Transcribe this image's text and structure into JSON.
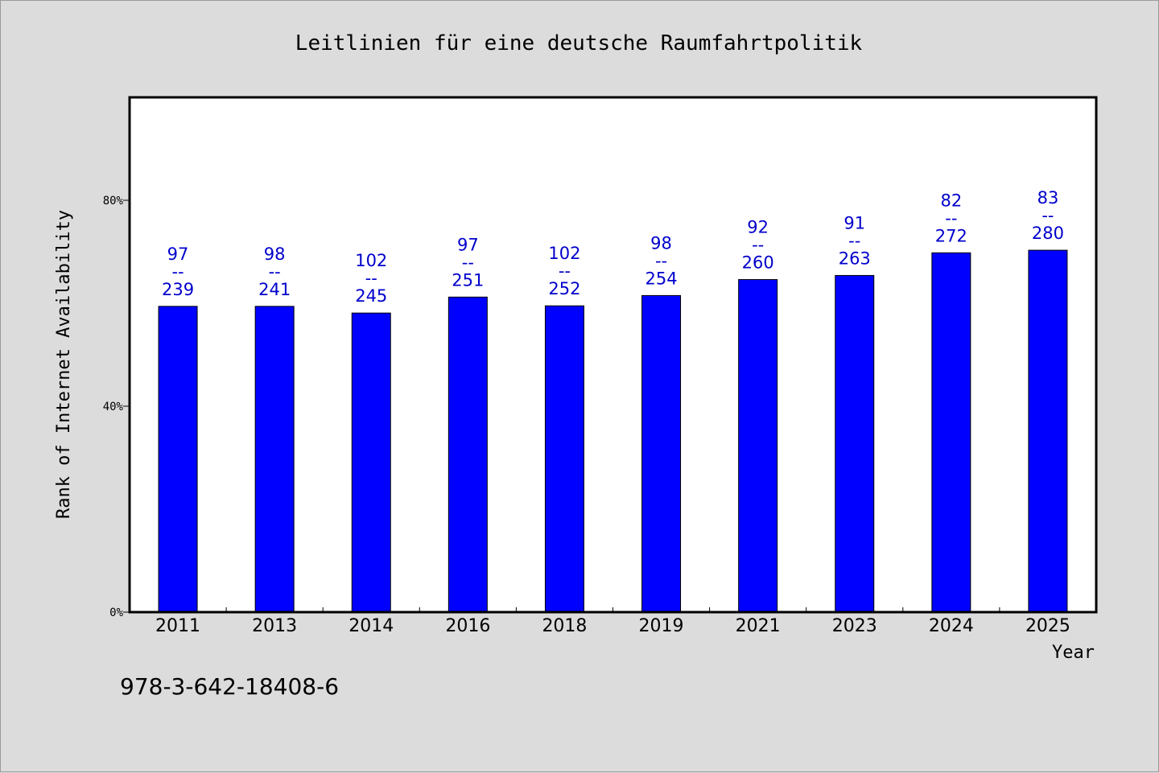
{
  "chart_data": {
    "type": "bar",
    "title": "Leitlinien für eine deutsche Raumfahrtpolitik",
    "xlabel": "Year",
    "ylabel": "Rank of Internet Availability",
    "categories": [
      "2011",
      "2013",
      "2014",
      "2016",
      "2018",
      "2019",
      "2021",
      "2023",
      "2024",
      "2025"
    ],
    "values": [
      59.4,
      59.4,
      58.1,
      61.2,
      59.5,
      61.5,
      64.6,
      65.4,
      69.8,
      70.3
    ],
    "value_unit": "%",
    "bar_labels": [
      [
        "97",
        "--",
        "239"
      ],
      [
        "98",
        "--",
        "241"
      ],
      [
        "102",
        "--",
        "245"
      ],
      [
        "97",
        "--",
        "251"
      ],
      [
        "102",
        "--",
        "252"
      ],
      [
        "98",
        "--",
        "254"
      ],
      [
        "92",
        "--",
        "260"
      ],
      [
        "91",
        "--",
        "263"
      ],
      [
        "82",
        "--",
        "272"
      ],
      [
        "83",
        "--",
        "280"
      ]
    ],
    "ylim": [
      0,
      100
    ],
    "yticks": [
      0,
      40,
      80
    ],
    "ytick_labels": [
      "0%",
      "40%",
      "80%"
    ],
    "grid": false,
    "legend": "none",
    "colors": {
      "bar": "#0000ff",
      "label": "#0000cc",
      "plot_bg": "#ffffff",
      "page_bg": "#dcdcdc"
    }
  },
  "footnote": "978-3-642-18408-6"
}
